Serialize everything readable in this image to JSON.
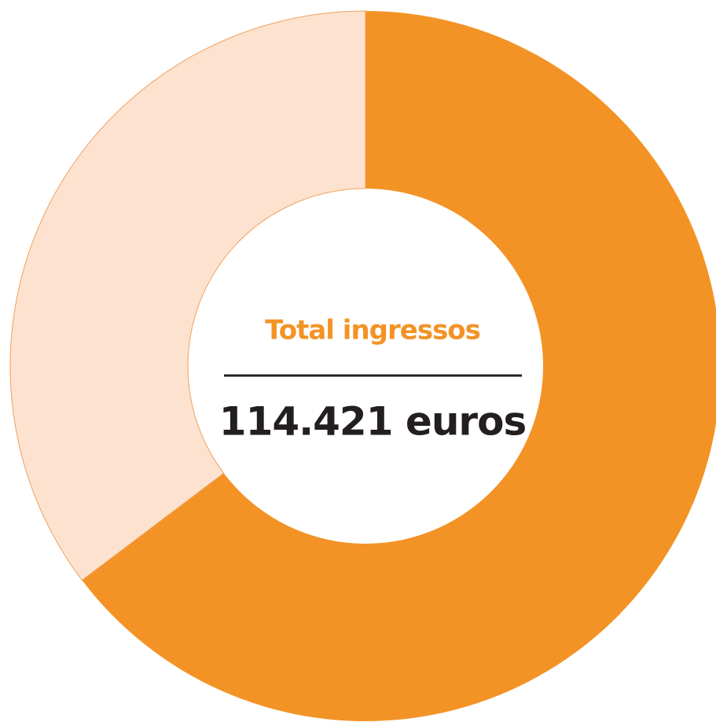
{
  "chart_data": {
    "type": "donut",
    "categories": [
      null,
      null
    ],
    "values": [
      64.7,
      35.3
    ],
    "colors": [
      "#f39325",
      "#fde3cf"
    ],
    "center_title": "Total ingressos",
    "center_value": "114.421 euros"
  }
}
